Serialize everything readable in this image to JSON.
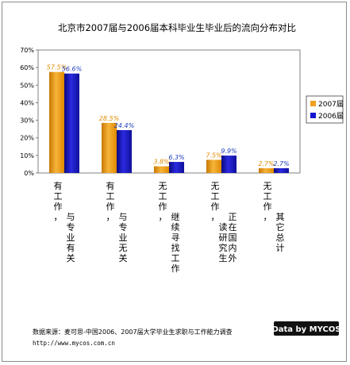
{
  "chart_data": {
    "type": "bar",
    "title": "北京市2007届与2006届本科毕业生毕业后的流向分布对比",
    "categories": [
      "有工作，与专业有关",
      "有工作，与专业无关",
      "无工作，继续寻找工作",
      "无工作，正在国内外读研究生",
      "无工作，其它总计"
    ],
    "series": [
      {
        "name": "2007届",
        "values": [
          57.5,
          28.5,
          3.8,
          7.5,
          2.7
        ],
        "labels": [
          "57.5%",
          "28.5%",
          "3.8%",
          "7.5%",
          "2.7%"
        ]
      },
      {
        "name": "2006届",
        "values": [
          56.6,
          24.4,
          6.3,
          9.9,
          2.7
        ],
        "labels": [
          "56.6%",
          "24.4%",
          "6.3%",
          "9.9%",
          "2.7%"
        ]
      }
    ],
    "yticks": [
      "0%",
      "10%",
      "20%",
      "30%",
      "40%",
      "50%",
      "60%",
      "70%"
    ],
    "ylim": [
      0,
      70
    ],
    "grid": false,
    "legend": "right",
    "colors": {
      "2007届": "#f0a020",
      "2006届": "#1414d0"
    }
  },
  "source": "数据来源：麦可思-中国2006、2007届大学毕业生求职与工作能力调查",
  "url": "http://www.mycos.com.cn",
  "logo": "Data by MYCOS"
}
